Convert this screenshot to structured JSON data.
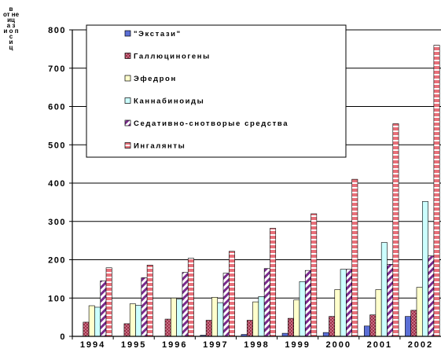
{
  "chart_data": {
    "type": "bar",
    "ylabel": [
      "в",
      "от неиц",
      "а з",
      "и о п",
      "с",
      "и",
      "ц"
    ],
    "ylim": [
      0,
      800
    ],
    "yticks": [
      0,
      100,
      200,
      300,
      400,
      500,
      600,
      700,
      800
    ],
    "grid": true,
    "legend_position": "top-left",
    "categories": [
      "1994",
      "1995",
      "1996",
      "1997",
      "1998",
      "1999",
      "2000",
      "2001",
      "2002"
    ],
    "series": [
      {
        "name": "\"Экстази\"",
        "color": "#5B6FD6",
        "pattern": "solid",
        "values": [
          0,
          0,
          0,
          3,
          5,
          8,
          10,
          27,
          52
        ]
      },
      {
        "name": "Галлюциногены",
        "color": "#A0304A",
        "pattern": "dots",
        "values": [
          37,
          33,
          45,
          42,
          42,
          47,
          52,
          56,
          68
        ]
      },
      {
        "name": "Эфедрон",
        "color": "#FFFFCC",
        "pattern": "solid",
        "values": [
          80,
          85,
          100,
          102,
          90,
          95,
          122,
          122,
          128
        ]
      },
      {
        "name": "Каннабиноиды",
        "color": "#CCFFFF",
        "pattern": "solid",
        "values": [
          76,
          81,
          97,
          88,
          104,
          143,
          175,
          245,
          352
        ]
      },
      {
        "name": "Седативно-снотворые средства",
        "color": "#7A2A8C",
        "pattern": "diag",
        "values": [
          145,
          153,
          167,
          165,
          177,
          172,
          175,
          188,
          210
        ]
      },
      {
        "name": "Ингалянты",
        "color": "#E8707A",
        "pattern": "dash",
        "values": [
          179,
          186,
          204,
          222,
          282,
          320,
          410,
          555,
          760
        ]
      }
    ]
  }
}
